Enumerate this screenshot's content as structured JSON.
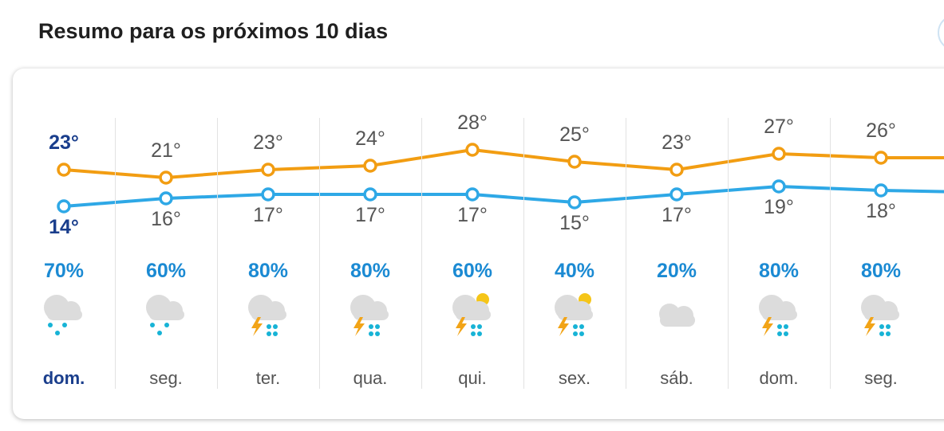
{
  "header": {
    "title": "Resumo para os próximos 10 dias"
  },
  "colors": {
    "max_line": "#f29d12",
    "min_line": "#2ea8e6",
    "today_text": "#1a3e8c",
    "precip_text": "#1b8ad3"
  },
  "days": [
    {
      "day": "dom.",
      "max": "23°",
      "min": "14°",
      "max_val": 23,
      "min_val": 14,
      "precip": "70%",
      "icon": "rain-cloud-icon",
      "today": true
    },
    {
      "day": "seg.",
      "max": "21°",
      "min": "16°",
      "max_val": 21,
      "min_val": 16,
      "precip": "60%",
      "icon": "rain-cloud-icon"
    },
    {
      "day": "ter.",
      "max": "23°",
      "min": "17°",
      "max_val": 23,
      "min_val": 17,
      "precip": "80%",
      "icon": "thunderstorm-icon"
    },
    {
      "day": "qua.",
      "max": "24°",
      "min": "17°",
      "max_val": 24,
      "min_val": 17,
      "precip": "80%",
      "icon": "thunderstorm-icon"
    },
    {
      "day": "qui.",
      "max": "28°",
      "min": "17°",
      "max_val": 28,
      "min_val": 17,
      "precip": "60%",
      "icon": "sun-thunderstorm-icon"
    },
    {
      "day": "sex.",
      "max": "25°",
      "min": "15°",
      "max_val": 25,
      "min_val": 15,
      "precip": "40%",
      "icon": "sun-thunderstorm-icon"
    },
    {
      "day": "sáb.",
      "max": "23°",
      "min": "17°",
      "max_val": 23,
      "min_val": 17,
      "precip": "20%",
      "icon": "cloud-icon"
    },
    {
      "day": "dom.",
      "max": "27°",
      "min": "19°",
      "max_val": 27,
      "min_val": 19,
      "precip": "80%",
      "icon": "thunderstorm-icon"
    },
    {
      "day": "seg.",
      "max": "26°",
      "min": "18°",
      "max_val": 26,
      "min_val": 18,
      "precip": "80%",
      "icon": "thunderstorm-icon"
    }
  ]
}
